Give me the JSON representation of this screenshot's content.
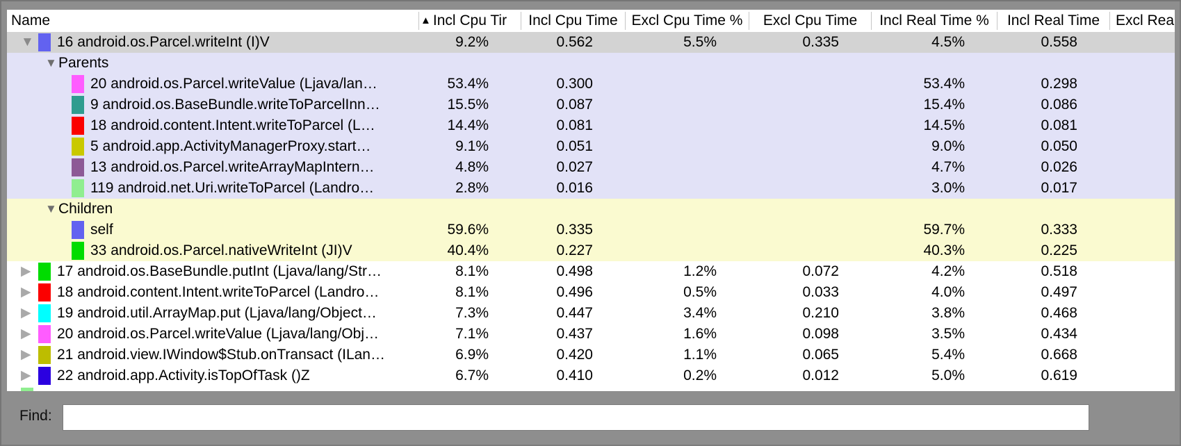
{
  "icons": {
    "sort_ascending": "▲",
    "expanded": "▼",
    "collapsed": "▶"
  },
  "colors": {
    "selected_row_bg": "#d3d3d3",
    "parents_section_bg": "#e2e2f7",
    "children_section_bg": "#fafad0",
    "window_bg": "#8e8e8e"
  },
  "table": {
    "columns": [
      {
        "label": "Name"
      },
      {
        "label": "Incl Cpu Tir",
        "sorted": "ascending"
      },
      {
        "label": "Incl Cpu Time"
      },
      {
        "label": "Excl Cpu Time %"
      },
      {
        "label": "Excl Cpu Time"
      },
      {
        "label": "Incl Real Time %"
      },
      {
        "label": "Incl Real Time"
      },
      {
        "label": "Excl Real"
      }
    ],
    "rows": [
      {
        "type": "method",
        "level": 0,
        "state": "expanded",
        "selected": true,
        "bg": "selected",
        "chip": "#6262f0",
        "name": "16 android.os.Parcel.writeInt (I)V",
        "values": [
          "9.2%",
          "0.562",
          "5.5%",
          "0.335",
          "4.5%",
          "0.558"
        ]
      },
      {
        "type": "group",
        "state": "expanded",
        "bg": "parents",
        "name": "Parents"
      },
      {
        "type": "method",
        "level": 1,
        "bg": "parents",
        "chip": "#ff5cff",
        "name": "20 android.os.Parcel.writeValue (Ljava/lan…",
        "values": [
          "53.4%",
          "0.300",
          "",
          "",
          "53.4%",
          "0.298"
        ]
      },
      {
        "type": "method",
        "level": 1,
        "bg": "parents",
        "chip": "#2f9c8f",
        "name": "9 android.os.BaseBundle.writeToParcelInn…",
        "values": [
          "15.5%",
          "0.087",
          "",
          "",
          "15.4%",
          "0.086"
        ]
      },
      {
        "type": "method",
        "level": 1,
        "bg": "parents",
        "chip": "#fb0000",
        "name": "18 android.content.Intent.writeToParcel (L…",
        "values": [
          "14.4%",
          "0.081",
          "",
          "",
          "14.5%",
          "0.081"
        ]
      },
      {
        "type": "method",
        "level": 1,
        "bg": "parents",
        "chip": "#c9c900",
        "name": "5 android.app.ActivityManagerProxy.start…",
        "values": [
          "9.1%",
          "0.051",
          "",
          "",
          "9.0%",
          "0.050"
        ]
      },
      {
        "type": "method",
        "level": 1,
        "bg": "parents",
        "chip": "#8d5a96",
        "name": "13 android.os.Parcel.writeArrayMapIntern…",
        "values": [
          "4.8%",
          "0.027",
          "",
          "",
          "4.7%",
          "0.026"
        ]
      },
      {
        "type": "method",
        "level": 1,
        "bg": "parents",
        "chip": "#90ee90",
        "name": "119 android.net.Uri.writeToParcel (Landro…",
        "values": [
          "2.8%",
          "0.016",
          "",
          "",
          "3.0%",
          "0.017"
        ]
      },
      {
        "type": "group",
        "state": "expanded",
        "bg": "children",
        "name": "Children"
      },
      {
        "type": "method",
        "level": 1,
        "bg": "children",
        "chip": "#6262f0",
        "name": "self",
        "values": [
          "59.6%",
          "0.335",
          "",
          "",
          "59.7%",
          "0.333"
        ]
      },
      {
        "type": "method",
        "level": 1,
        "bg": "children",
        "chip": "#00dc00",
        "name": "33 android.os.Parcel.nativeWriteInt (JI)V",
        "values": [
          "40.4%",
          "0.227",
          "",
          "",
          "40.3%",
          "0.225"
        ]
      },
      {
        "type": "method",
        "level": 0,
        "state": "collapsed",
        "bg": "white",
        "chip": "#00dc00",
        "name": "17 android.os.BaseBundle.putInt (Ljava/lang/Str…",
        "values": [
          "8.1%",
          "0.498",
          "1.2%",
          "0.072",
          "4.2%",
          "0.518"
        ]
      },
      {
        "type": "method",
        "level": 0,
        "state": "collapsed",
        "bg": "white",
        "chip": "#fb0000",
        "name": "18 android.content.Intent.writeToParcel (Landro…",
        "values": [
          "8.1%",
          "0.496",
          "0.5%",
          "0.033",
          "4.0%",
          "0.497"
        ]
      },
      {
        "type": "method",
        "level": 0,
        "state": "collapsed",
        "bg": "white",
        "chip": "#00ffff",
        "name": "19 android.util.ArrayMap.put (Ljava/lang/Object…",
        "values": [
          "7.3%",
          "0.447",
          "3.4%",
          "0.210",
          "3.8%",
          "0.468"
        ]
      },
      {
        "type": "method",
        "level": 0,
        "state": "collapsed",
        "bg": "white",
        "chip": "#ff5cff",
        "name": "20 android.os.Parcel.writeValue (Ljava/lang/Obj…",
        "values": [
          "7.1%",
          "0.437",
          "1.6%",
          "0.098",
          "3.5%",
          "0.434"
        ]
      },
      {
        "type": "method",
        "level": 0,
        "state": "collapsed",
        "bg": "white",
        "chip": "#bdbd00",
        "name": "21 android.view.IWindow$Stub.onTransact (ILan…",
        "values": [
          "6.9%",
          "0.420",
          "1.1%",
          "0.065",
          "5.4%",
          "0.668"
        ]
      },
      {
        "type": "method",
        "level": 0,
        "state": "collapsed",
        "bg": "white",
        "chip": "#2b00e0",
        "name": "22 android.app.Activity.isTopOfTask ()Z",
        "values": [
          "6.7%",
          "0.410",
          "0.2%",
          "0.012",
          "5.0%",
          "0.619"
        ]
      },
      {
        "type": "method",
        "level": 0,
        "partial": true,
        "bg": "white",
        "chip": "#90ee90",
        "name": "",
        "values": []
      }
    ]
  },
  "find": {
    "label": "Find:",
    "value": ""
  }
}
